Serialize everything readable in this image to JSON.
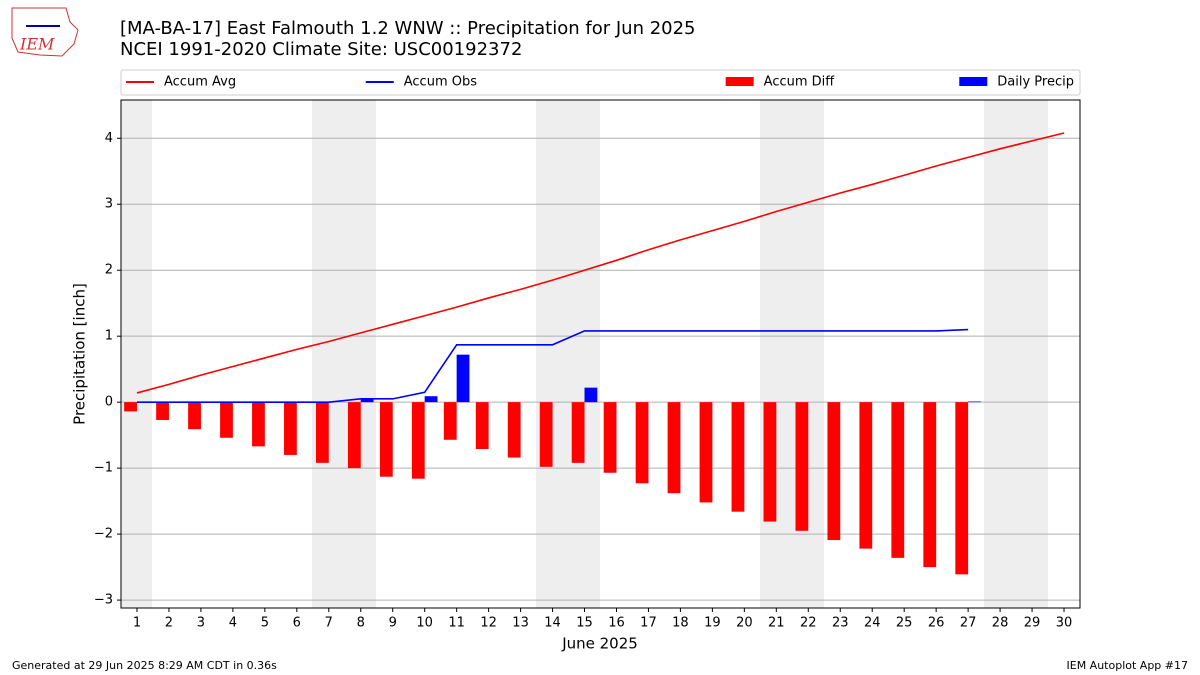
{
  "logo_text": "IEM",
  "chart_data": {
    "type": "bar_line",
    "title": "[MA-BA-17] East Falmouth 1.2 WNW :: Precipitation for Jun 2025",
    "subtitle": "NCEI 1991-2020 Climate Site: USC00192372",
    "ylabel": "Precipitation [inch]",
    "xlabel": "June 2025",
    "x": [
      1,
      2,
      3,
      4,
      5,
      6,
      7,
      8,
      9,
      10,
      11,
      12,
      13,
      14,
      15,
      16,
      17,
      18,
      19,
      20,
      21,
      22,
      23,
      24,
      25,
      26,
      27,
      28,
      29,
      30
    ],
    "xlim": [
      0.5,
      30.5
    ],
    "xticks": [
      1,
      2,
      3,
      4,
      5,
      6,
      7,
      8,
      9,
      10,
      11,
      12,
      13,
      14,
      15,
      16,
      17,
      18,
      19,
      20,
      21,
      22,
      23,
      24,
      25,
      26,
      27,
      28,
      29,
      30
    ],
    "ylim": [
      -3.12,
      4.58
    ],
    "yticks": [
      {
        "value": -3,
        "label": "−3"
      },
      {
        "value": -2,
        "label": "−2"
      },
      {
        "value": -1,
        "label": "−1"
      },
      0,
      1,
      2,
      3,
      4
    ],
    "grid": true,
    "legend": "top",
    "series": [
      {
        "name": "Accum Avg",
        "kind": "line",
        "color": "#ff0000",
        "values": [
          0.14,
          0.27,
          0.41,
          0.54,
          0.67,
          0.8,
          0.92,
          1.05,
          1.18,
          1.31,
          1.44,
          1.58,
          1.71,
          1.85,
          2.0,
          2.15,
          2.31,
          2.46,
          2.6,
          2.74,
          2.89,
          3.03,
          3.17,
          3.3,
          3.44,
          3.58,
          3.71,
          3.84,
          3.96,
          4.08
        ]
      },
      {
        "name": "Accum Obs",
        "kind": "line",
        "color": "#0000ff",
        "values": [
          0,
          0,
          0,
          0,
          0,
          0,
          0,
          0.05,
          0.05,
          0.15,
          0.87,
          0.87,
          0.87,
          0.87,
          1.08,
          1.08,
          1.08,
          1.08,
          1.08,
          1.08,
          1.08,
          1.08,
          1.08,
          1.08,
          1.08,
          1.08,
          1.1,
          null,
          null,
          null
        ]
      },
      {
        "name": "Accum Diff",
        "kind": "bar",
        "offset": "left",
        "color": "#ff0000",
        "values": [
          -0.14,
          -0.27,
          -0.41,
          -0.54,
          -0.67,
          -0.8,
          -0.92,
          -1.0,
          -1.13,
          -1.16,
          -0.57,
          -0.71,
          -0.84,
          -0.98,
          -0.92,
          -1.07,
          -1.23,
          -1.38,
          -1.52,
          -1.66,
          -1.81,
          -1.95,
          -2.09,
          -2.22,
          -2.36,
          -2.5,
          -2.61,
          null,
          null,
          null
        ]
      },
      {
        "name": "Daily Precip",
        "kind": "bar",
        "offset": "right",
        "color": "#0000ff",
        "values": [
          0,
          0,
          0,
          0,
          0,
          0,
          0,
          0.05,
          0,
          0.09,
          0.72,
          0,
          0,
          0,
          0.22,
          0,
          0,
          0,
          0,
          0,
          0,
          0,
          0,
          0,
          0,
          0,
          0.01,
          null,
          null,
          null
        ]
      }
    ],
    "footer_left": "Generated at 29 Jun 2025 8:29 AM CDT in 0.36s",
    "footer_right": "IEM Autoplot App #17"
  }
}
